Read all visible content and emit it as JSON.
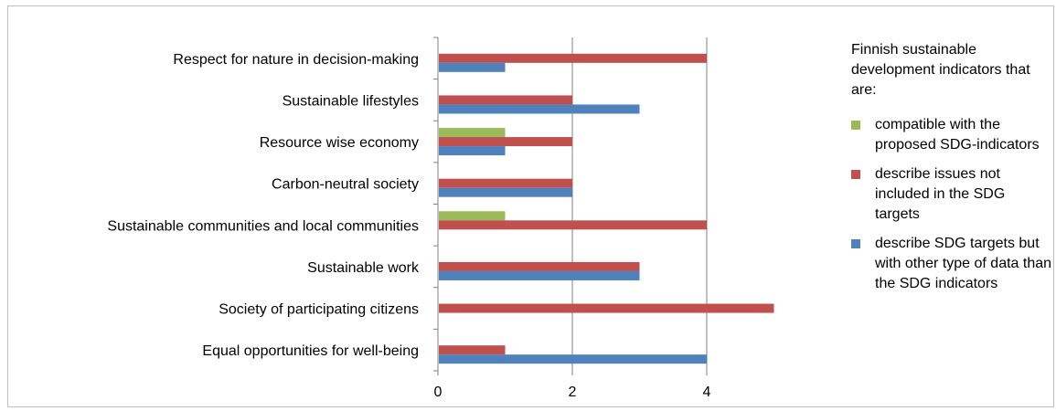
{
  "chart_data": {
    "type": "bar",
    "orientation": "horizontal",
    "categories": [
      "Respect for nature in decision-making",
      "Sustainable lifestyles",
      "Resource wise economy",
      "Carbon-neutral society",
      "Sustainable communities and local communities",
      "Sustainable work",
      "Society of participating citizens",
      "Equal opportunities for well-being"
    ],
    "series": [
      {
        "name": "compatible with the proposed SDG-indicators",
        "color": "#9bbb59",
        "values": [
          0,
          0,
          1,
          0,
          1,
          0,
          0,
          0
        ]
      },
      {
        "name": "describe issues not included in the SDG targets",
        "color": "#c0504d",
        "values": [
          4,
          2,
          2,
          2,
          4,
          3,
          5,
          1
        ]
      },
      {
        "name": "describe SDG targets but with other type of data than the SDG indicators",
        "color": "#4f81bd",
        "values": [
          1,
          3,
          1,
          2,
          0,
          3,
          0,
          4
        ]
      }
    ],
    "xticks": [
      "0",
      "2",
      "4"
    ],
    "xlim": [
      0,
      5
    ],
    "grid": true,
    "legend_title": "Finnish sustainable development indicators that are:",
    "legend_position": "right"
  }
}
